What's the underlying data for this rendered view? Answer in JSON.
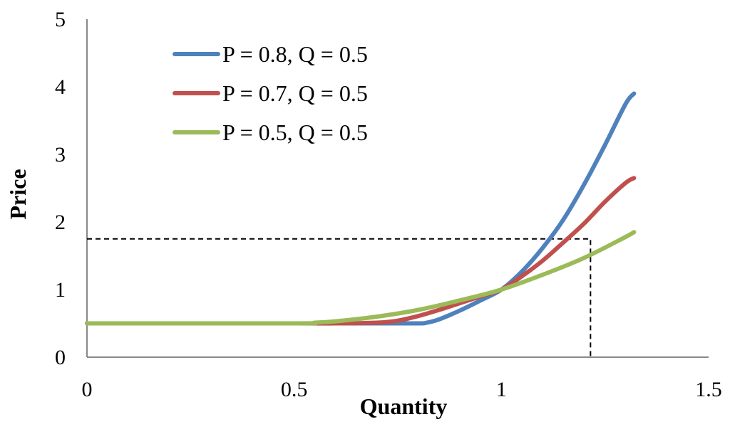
{
  "chart_data": {
    "type": "line",
    "title": "",
    "xlabel": "Quantity",
    "ylabel": "Price",
    "xlim": [
      0,
      1.5
    ],
    "ylim": [
      0,
      5
    ],
    "x_ticks": [
      "0",
      "0.5",
      "1",
      "1.5"
    ],
    "y_ticks": [
      "0",
      "1",
      "2",
      "3",
      "4",
      "5"
    ],
    "grid": false,
    "legend_position": "top-left",
    "series": [
      {
        "name": "P = 0.8, Q = 0.5",
        "color": "#4f81bd",
        "points": [
          [
            0,
            0.5
          ],
          [
            0.5,
            0.5
          ],
          [
            0.7,
            0.5
          ],
          [
            0.8,
            0.5
          ],
          [
            0.82,
            0.51
          ],
          [
            0.85,
            0.56
          ],
          [
            0.9,
            0.69
          ],
          [
            0.95,
            0.84
          ],
          [
            1.0,
            1.0
          ],
          [
            1.05,
            1.27
          ],
          [
            1.1,
            1.62
          ],
          [
            1.15,
            2.04
          ],
          [
            1.2,
            2.56
          ],
          [
            1.25,
            3.14
          ],
          [
            1.3,
            3.75
          ],
          [
            1.32,
            3.9
          ]
        ]
      },
      {
        "name": "P = 0.7, Q = 0.5",
        "color": "#c0504d",
        "points": [
          [
            0,
            0.5
          ],
          [
            0.5,
            0.5
          ],
          [
            0.6,
            0.5
          ],
          [
            0.7,
            0.51
          ],
          [
            0.75,
            0.54
          ],
          [
            0.8,
            0.61
          ],
          [
            0.85,
            0.7
          ],
          [
            0.9,
            0.8
          ],
          [
            0.95,
            0.9
          ],
          [
            1.0,
            1.0
          ],
          [
            1.05,
            1.2
          ],
          [
            1.1,
            1.43
          ],
          [
            1.15,
            1.7
          ],
          [
            1.2,
            1.98
          ],
          [
            1.25,
            2.3
          ],
          [
            1.3,
            2.58
          ],
          [
            1.32,
            2.65
          ]
        ]
      },
      {
        "name": "P = 0.5, Q = 0.5",
        "color": "#9bbb59",
        "points": [
          [
            0,
            0.5
          ],
          [
            0.5,
            0.5
          ],
          [
            0.55,
            0.51
          ],
          [
            0.6,
            0.53
          ],
          [
            0.7,
            0.6
          ],
          [
            0.8,
            0.7
          ],
          [
            0.9,
            0.84
          ],
          [
            1.0,
            1.0
          ],
          [
            1.1,
            1.22
          ],
          [
            1.2,
            1.47
          ],
          [
            1.3,
            1.78
          ],
          [
            1.32,
            1.85
          ]
        ]
      }
    ],
    "annotations": {
      "dashed_guide": {
        "x": 1.215,
        "y": 1.75
      }
    }
  }
}
